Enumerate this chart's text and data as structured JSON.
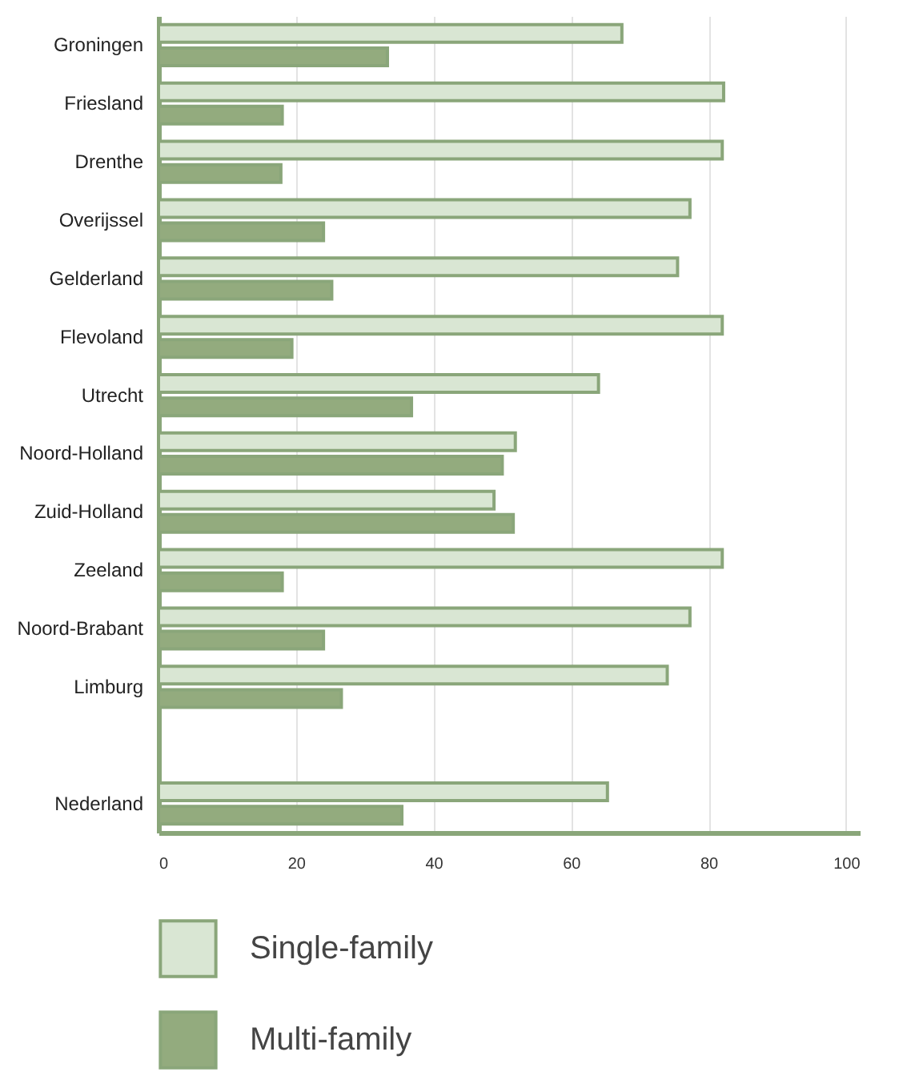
{
  "chart_data": {
    "type": "bar",
    "orientation": "horizontal",
    "categories": [
      "Groningen",
      "Friesland",
      "Drenthe",
      "Overijssel",
      "Gelderland",
      "Flevoland",
      "Utrecht",
      "Noord-Holland",
      "Zuid-Holland",
      "Zeeland",
      "Noord-Brabant",
      "Limburg",
      null,
      "Nederland"
    ],
    "series": [
      {
        "name": "Single-family",
        "color": "#d9e6d3",
        "values": [
          67.4,
          82.2,
          82,
          77.3,
          75.5,
          82,
          64,
          51.9,
          48.8,
          82,
          77.3,
          74,
          null,
          65.3
        ]
      },
      {
        "name": "Multi-family",
        "color": "#93ab7e",
        "values": [
          33.3,
          18,
          17.8,
          24,
          25.2,
          19.4,
          36.8,
          50,
          51.6,
          18,
          24,
          26.6,
          null,
          35.4
        ]
      }
    ],
    "xlim": [
      0,
      102
    ],
    "xticks": [
      0,
      20,
      40,
      60,
      80,
      100
    ],
    "grid": "x",
    "legend": "bottom"
  }
}
